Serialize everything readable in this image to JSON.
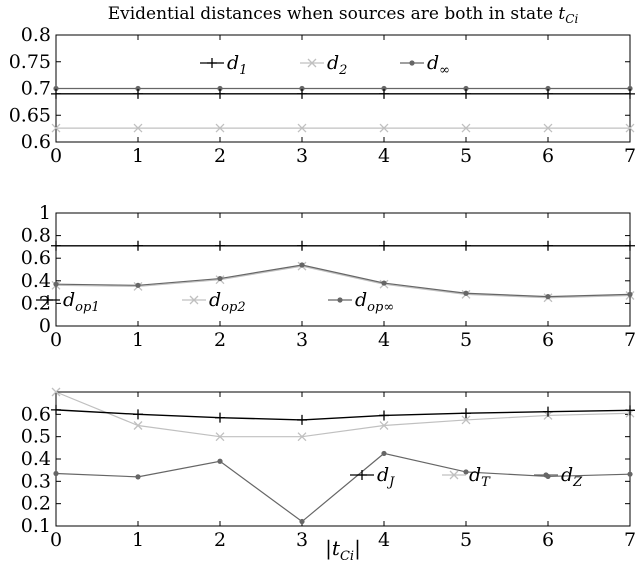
{
  "figure": {
    "title": "Evidential distances when sources are both in state t_Ci",
    "xlabel": "|t_Ci|"
  },
  "chart_data": [
    {
      "type": "line",
      "title": "Evidential distances when sources are both in state t_Ci",
      "xlabel": "",
      "ylabel": "",
      "x": [
        0,
        1,
        2,
        3,
        4,
        5,
        6,
        7
      ],
      "xlim": [
        0,
        7
      ],
      "ylim": [
        0.6,
        0.8
      ],
      "yticks": [
        0.6,
        0.65,
        0.7,
        0.75,
        0.8
      ],
      "ytick_labels": [
        "0.6",
        "0.65",
        "0.7",
        "0.75",
        "0.8"
      ],
      "xticks": [
        0,
        1,
        2,
        3,
        4,
        5,
        6,
        7
      ],
      "grid": false,
      "legend_position": "top-center",
      "series": [
        {
          "name": "d1",
          "label_base": "d",
          "label_sub": "1",
          "color": "#000000",
          "marker": "plus",
          "values": [
            0.69,
            0.69,
            0.69,
            0.69,
            0.69,
            0.69,
            0.69,
            0.69
          ]
        },
        {
          "name": "d2",
          "label_base": "d",
          "label_sub": "2",
          "color": "#c0c0c0",
          "marker": "x",
          "values": [
            0.626,
            0.626,
            0.626,
            0.626,
            0.626,
            0.626,
            0.626,
            0.626
          ]
        },
        {
          "name": "d∞",
          "label_base": "d",
          "label_sub": "∞",
          "color": "#666666",
          "marker": "dot",
          "values": [
            0.7,
            0.7,
            0.7,
            0.7,
            0.7,
            0.7,
            0.7,
            0.7
          ]
        }
      ]
    },
    {
      "type": "line",
      "xlabel": "",
      "ylabel": "",
      "x": [
        0,
        1,
        2,
        3,
        4,
        5,
        6,
        7
      ],
      "xlim": [
        0,
        7
      ],
      "ylim": [
        0,
        1
      ],
      "yticks": [
        0,
        0.2,
        0.4,
        0.6,
        0.8,
        1
      ],
      "ytick_labels": [
        "0",
        "0.2",
        "0.4",
        "0.6",
        "0.8",
        "1"
      ],
      "xticks": [
        0,
        1,
        2,
        3,
        4,
        5,
        6,
        7
      ],
      "grid": false,
      "legend_position": "bottom-left",
      "series": [
        {
          "name": "dop1",
          "label_base": "d",
          "label_sub": "op1",
          "color": "#000000",
          "marker": "plus",
          "values": [
            0.71,
            0.71,
            0.71,
            0.71,
            0.71,
            0.71,
            0.71,
            0.71
          ]
        },
        {
          "name": "dop2",
          "label_base": "d",
          "label_sub": "op2",
          "color": "#c0c0c0",
          "marker": "x",
          "values": [
            0.36,
            0.35,
            0.41,
            0.53,
            0.37,
            0.28,
            0.25,
            0.27
          ]
        },
        {
          "name": "dop∞",
          "label_base": "d",
          "label_sub": "op∞",
          "color": "#666666",
          "marker": "dot",
          "values": [
            0.37,
            0.36,
            0.42,
            0.54,
            0.38,
            0.29,
            0.26,
            0.28
          ]
        }
      ]
    },
    {
      "type": "line",
      "xlabel": "|t_Ci|",
      "ylabel": "",
      "x": [
        0,
        1,
        2,
        3,
        4,
        5,
        6,
        7
      ],
      "xlim": [
        0,
        7
      ],
      "ylim": [
        0.1,
        0.7
      ],
      "yticks": [
        0.1,
        0.2,
        0.3,
        0.4,
        0.5,
        0.6
      ],
      "ytick_labels": [
        "0.1",
        "0.2",
        "0.3",
        "0.4",
        "0.5",
        "0.6"
      ],
      "xticks": [
        0,
        1,
        2,
        3,
        4,
        5,
        6,
        7
      ],
      "grid": false,
      "legend_position": "bottom-right",
      "series": [
        {
          "name": "dJ",
          "label_base": "d",
          "label_sub": "J",
          "color": "#000000",
          "marker": "plus",
          "values": [
            0.62,
            0.6,
            0.585,
            0.575,
            0.595,
            0.605,
            0.612,
            0.618
          ]
        },
        {
          "name": "dT",
          "label_base": "d",
          "label_sub": "T",
          "color": "#c0c0c0",
          "marker": "x",
          "values": [
            0.7,
            0.55,
            0.5,
            0.5,
            0.55,
            0.575,
            0.595,
            0.605
          ]
        },
        {
          "name": "dZ",
          "label_base": "d",
          "label_sub": "Z",
          "color": "#666666",
          "marker": "dot",
          "values": [
            0.335,
            0.32,
            0.39,
            0.12,
            0.425,
            0.342,
            0.322,
            0.332
          ]
        }
      ]
    }
  ]
}
